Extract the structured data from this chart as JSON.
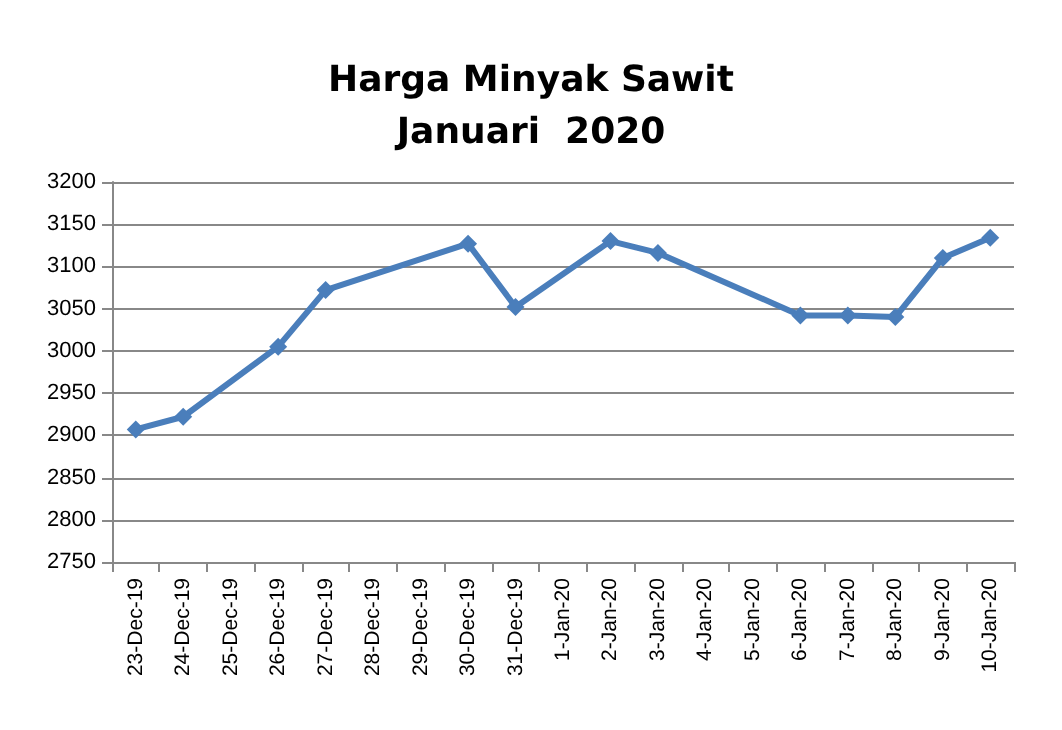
{
  "chart_data": {
    "type": "line",
    "title": "Harga Minyak Sawit\nJanuari  2020",
    "categories": [
      "23-Dec-19",
      "24-Dec-19",
      "25-Dec-19",
      "26-Dec-19",
      "27-Dec-19",
      "28-Dec-19",
      "29-Dec-19",
      "30-Dec-19",
      "31-Dec-19",
      "1-Jan-20",
      "2-Jan-20",
      "3-Jan-20",
      "4-Jan-20",
      "5-Jan-20",
      "6-Jan-20",
      "7-Jan-20",
      "8-Jan-20",
      "9-Jan-20",
      "10-Jan-20"
    ],
    "series": [
      {
        "color": "#4a7ebb",
        "values": [
          2907,
          2922,
          null,
          3005,
          3072,
          null,
          null,
          3127,
          3052,
          null,
          3130,
          3116,
          null,
          null,
          3042,
          3042,
          3040,
          3110,
          3134
        ]
      }
    ],
    "ylim": [
      2750,
      3200
    ],
    "yticks": [
      2750,
      2800,
      2850,
      2900,
      2950,
      3000,
      3050,
      3100,
      3150,
      3200
    ],
    "grid": "y",
    "marker": "diamond",
    "line_style": "solid"
  }
}
